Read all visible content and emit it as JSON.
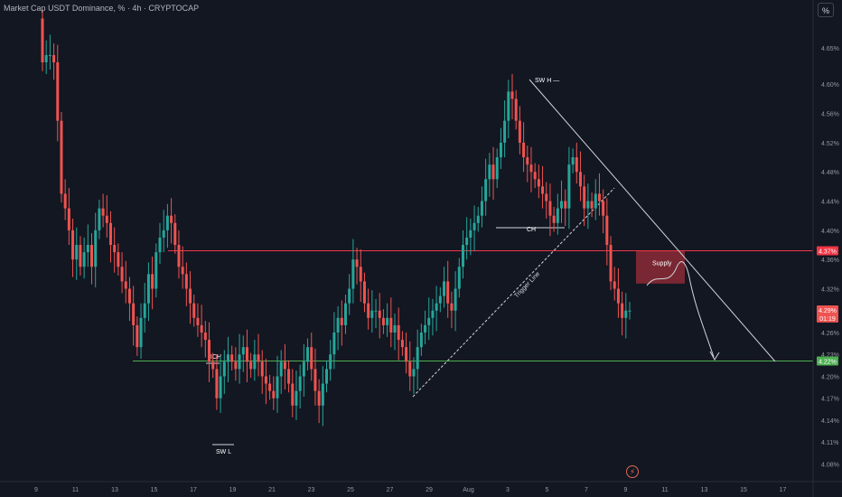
{
  "header": {
    "symbol_title": "Market Cap USDT Dominance, % · 4h · CRYPTOCAP",
    "scale_toggle_label": "%"
  },
  "colors": {
    "background": "#131722",
    "bull": "#26a69a",
    "bear": "#ef5350",
    "supply_zone": "#8c2a35",
    "resistance_line": "#f23645",
    "support_line": "#4caf50",
    "text": "#d1d4dc",
    "axis_text": "#9598a1"
  },
  "icons": [
    "lightning-icon"
  ],
  "chart_data": {
    "type": "candlestick",
    "title": "Market Cap USDT Dominance, % · 4h · CRYPTOCAP",
    "xlabel": "",
    "ylabel": "",
    "grid": false,
    "ylim": [
      4.062,
      4.703
    ],
    "y_ticks": [
      "4.65%",
      "4.60%",
      "4.56%",
      "4.52%",
      "4.48%",
      "4.44%",
      "4.40%",
      "4.36%",
      "4.32%",
      "4.26%",
      "4.23%",
      "4.20%",
      "4.17%",
      "4.14%",
      "4.11%",
      "4.08%"
    ],
    "x_ticks": [
      "9",
      "11",
      "13",
      "15",
      "17",
      "19",
      "21",
      "23",
      "25",
      "27",
      "29",
      "Aug",
      "3",
      "5",
      "7",
      "9",
      "11",
      "13",
      "15",
      "17"
    ],
    "price_labels": [
      {
        "text": "4.37%",
        "value": 4.372,
        "kind": "resistance"
      },
      {
        "text": "4.29%",
        "value": 4.291,
        "kind": "last_price"
      },
      {
        "text": "01:19",
        "value": 4.28,
        "kind": "countdown"
      },
      {
        "text": "4.22%",
        "value": 4.221,
        "kind": "support"
      }
    ],
    "annotations": [
      {
        "text": "SW H —",
        "kind": "label"
      },
      {
        "text": "CH",
        "kind": "label"
      },
      {
        "text": "ICH",
        "kind": "label"
      },
      {
        "text": "SW L",
        "kind": "label"
      },
      {
        "text": "Supply",
        "kind": "zone"
      },
      {
        "text": "Trigger Line",
        "kind": "trendline"
      }
    ],
    "levels": {
      "resistance": 4.372,
      "support": 4.221
    },
    "supply_zone": [
      4.327,
      4.372
    ],
    "close": [
      4.63,
      4.64,
      4.64,
      4.63,
      4.55,
      4.45,
      4.43,
      4.4,
      4.36,
      4.38,
      4.35,
      4.37,
      4.38,
      4.35,
      4.4,
      4.43,
      4.42,
      4.41,
      4.38,
      4.37,
      4.35,
      4.33,
      4.32,
      4.3,
      4.27,
      4.24,
      4.28,
      4.3,
      4.34,
      4.32,
      4.37,
      4.39,
      4.4,
      4.42,
      4.41,
      4.38,
      4.35,
      4.34,
      4.32,
      4.3,
      4.28,
      4.27,
      4.26,
      4.25,
      4.22,
      4.21,
      4.17,
      4.2,
      4.22,
      4.23,
      4.22,
      4.21,
      4.23,
      4.24,
      4.22,
      4.21,
      4.23,
      4.22,
      4.2,
      4.19,
      4.18,
      4.17,
      4.2,
      4.22,
      4.21,
      4.19,
      4.16,
      4.18,
      4.2,
      4.22,
      4.24,
      4.21,
      4.18,
      4.16,
      4.19,
      4.21,
      4.23,
      4.26,
      4.28,
      4.27,
      4.3,
      4.32,
      4.36,
      4.35,
      4.33,
      4.3,
      4.28,
      4.29,
      4.29,
      4.28,
      4.27,
      4.28,
      4.26,
      4.27,
      4.25,
      4.24,
      4.22,
      4.2,
      4.21,
      4.24,
      4.26,
      4.27,
      4.28,
      4.29,
      4.3,
      4.31,
      4.33,
      4.3,
      4.29,
      4.32,
      4.35,
      4.38,
      4.39,
      4.4,
      4.41,
      4.42,
      4.44,
      4.47,
      4.49,
      4.47,
      4.5,
      4.52,
      4.55,
      4.59,
      4.58,
      4.55,
      4.52,
      4.5,
      4.49,
      4.48,
      4.47,
      4.46,
      4.45,
      4.44,
      4.42,
      4.41,
      4.43,
      4.44,
      4.43,
      4.49,
      4.5,
      4.48,
      4.46,
      4.43,
      4.44,
      4.43,
      4.45,
      4.44,
      4.42,
      4.38,
      4.33,
      4.32,
      4.3,
      4.28,
      4.29,
      4.29
    ]
  }
}
